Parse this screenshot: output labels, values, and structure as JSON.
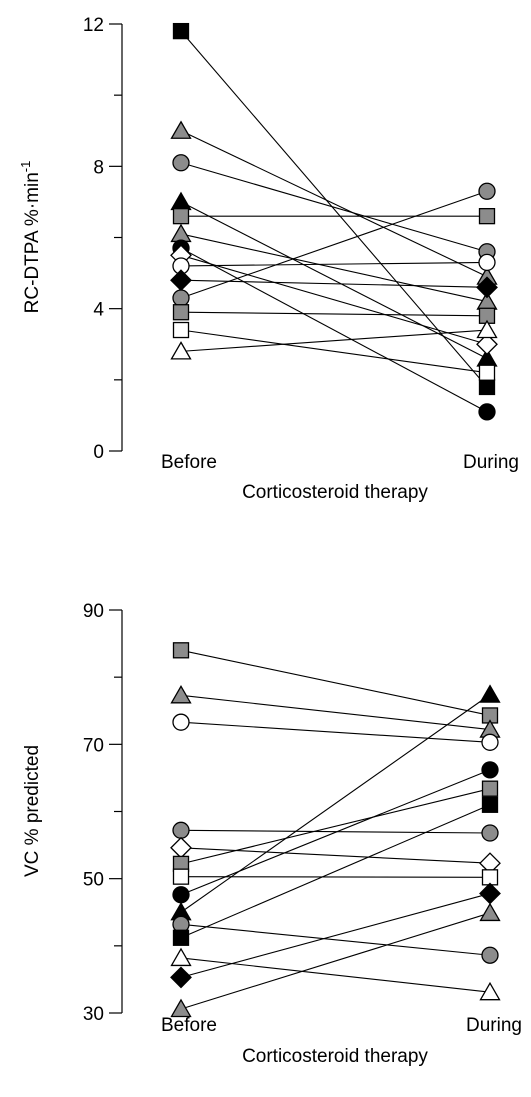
{
  "chart_data": [
    {
      "type": "line",
      "ylabel": "RC-DTPA  %·min",
      "ylabel_superscript": "-1",
      "xlabel": "Corticosteroid therapy",
      "categories": [
        "Before",
        "During"
      ],
      "yticks": [
        "0",
        "4",
        "8",
        "12"
      ],
      "ylim": [
        0,
        12
      ],
      "series": [
        {
          "marker": "square",
          "fill": "black",
          "values": [
            11.8,
            1.8
          ]
        },
        {
          "marker": "triangle",
          "fill": "gray",
          "values": [
            9.0,
            4.9
          ]
        },
        {
          "marker": "circle",
          "fill": "gray",
          "values": [
            8.1,
            5.6
          ]
        },
        {
          "marker": "triangle",
          "fill": "black",
          "values": [
            7.0,
            2.6
          ]
        },
        {
          "marker": "square",
          "fill": "gray",
          "values": [
            6.6,
            6.6
          ]
        },
        {
          "marker": "triangle",
          "fill": "gray",
          "values": [
            6.1,
            4.2
          ]
        },
        {
          "marker": "circle",
          "fill": "black",
          "values": [
            5.7,
            1.1
          ]
        },
        {
          "marker": "diamond",
          "fill": "white",
          "values": [
            5.5,
            3.0
          ]
        },
        {
          "marker": "circle",
          "fill": "white",
          "values": [
            5.2,
            5.3
          ]
        },
        {
          "marker": "diamond",
          "fill": "black",
          "values": [
            4.8,
            4.6
          ]
        },
        {
          "marker": "circle",
          "fill": "gray",
          "values": [
            4.3,
            7.3
          ]
        },
        {
          "marker": "square",
          "fill": "gray",
          "values": [
            3.9,
            3.8
          ]
        },
        {
          "marker": "square",
          "fill": "white",
          "values": [
            3.4,
            2.2
          ]
        },
        {
          "marker": "triangle",
          "fill": "white",
          "values": [
            2.8,
            3.4
          ]
        }
      ]
    },
    {
      "type": "line",
      "ylabel": "VC  % predicted",
      "xlabel": "Corticosteroid therapy",
      "categories": [
        "Before",
        "During"
      ],
      "yticks": [
        "30",
        "50",
        "70",
        "90"
      ],
      "ylim": [
        30,
        90
      ],
      "series": [
        {
          "marker": "square",
          "fill": "gray",
          "values": [
            84.0,
            74.3
          ]
        },
        {
          "marker": "triangle",
          "fill": "gray",
          "values": [
            77.3,
            72.2
          ]
        },
        {
          "marker": "circle",
          "fill": "white",
          "values": [
            73.3,
            70.3
          ]
        },
        {
          "marker": "circle",
          "fill": "gray",
          "values": [
            57.2,
            56.8
          ]
        },
        {
          "marker": "diamond",
          "fill": "white",
          "values": [
            54.6,
            52.3
          ]
        },
        {
          "marker": "square",
          "fill": "gray",
          "values": [
            52.2,
            63.4
          ]
        },
        {
          "marker": "square",
          "fill": "white",
          "values": [
            50.3,
            50.2
          ]
        },
        {
          "marker": "circle",
          "fill": "black",
          "values": [
            47.6,
            66.2
          ]
        },
        {
          "marker": "triangle",
          "fill": "black",
          "values": [
            45.0,
            77.4
          ]
        },
        {
          "marker": "circle",
          "fill": "gray",
          "values": [
            43.2,
            38.6
          ]
        },
        {
          "marker": "square",
          "fill": "black",
          "values": [
            41.2,
            61.0
          ]
        },
        {
          "marker": "triangle",
          "fill": "white",
          "values": [
            38.2,
            33.1
          ]
        },
        {
          "marker": "diamond",
          "fill": "black",
          "values": [
            35.3,
            47.8
          ]
        },
        {
          "marker": "triangle",
          "fill": "gray",
          "values": [
            30.6,
            44.9
          ]
        }
      ]
    }
  ],
  "colors": {
    "black": "#000000",
    "gray": "#8c8c8c",
    "white": "#ffffff"
  }
}
